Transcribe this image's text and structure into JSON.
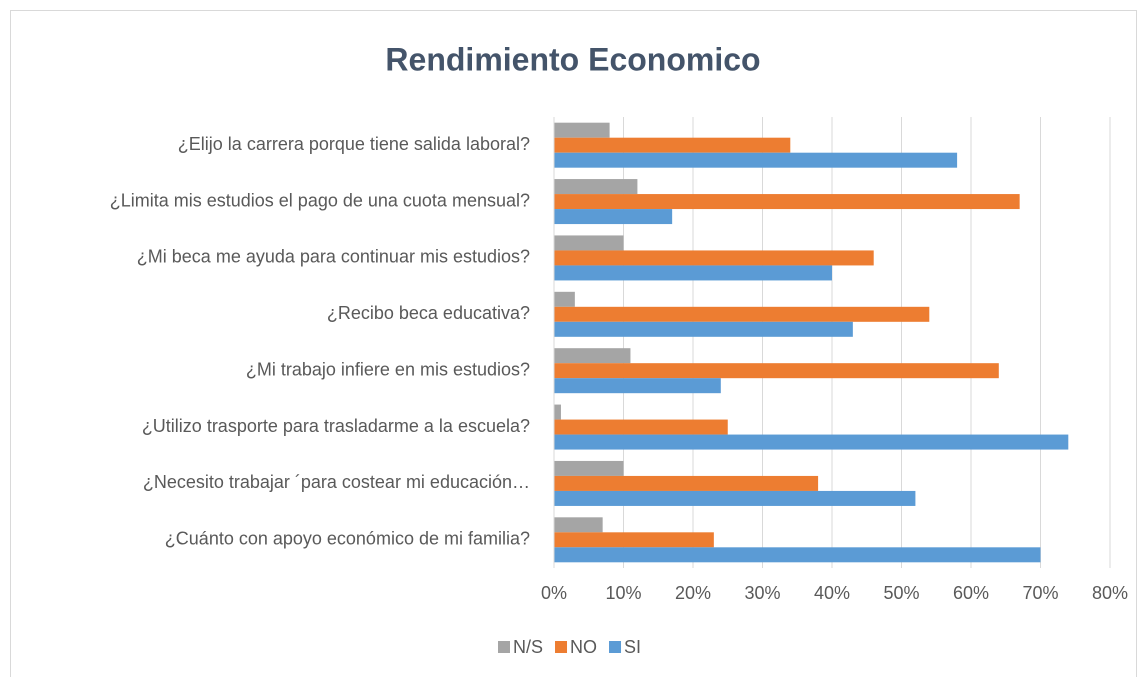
{
  "chart_data": {
    "type": "hbar",
    "title": "Rendimiento Economico",
    "categories": [
      "¿Elijo la carrera porque tiene salida laboral?",
      "¿Limita mis estudios el pago de una cuota mensual?",
      "¿Mi beca me ayuda para continuar mis estudios?",
      "¿Recibo beca educativa?",
      "¿Mi trabajo infiere en mis estudios?",
      "¿Utilizo trasporte para trasladarme a la escuela?",
      "¿Necesito trabajar ´para costear mi educación…",
      "¿Cuánto con apoyo económico de mi familia?"
    ],
    "series": [
      {
        "name": "N/S",
        "color": "#a5a5a5",
        "values": [
          8,
          12,
          10,
          3,
          11,
          1,
          10,
          7
        ]
      },
      {
        "name": "NO",
        "color": "#ed7d31",
        "values": [
          34,
          67,
          46,
          54,
          64,
          25,
          38,
          23
        ]
      },
      {
        "name": "SI",
        "color": "#5b9bd5",
        "values": [
          58,
          17,
          40,
          43,
          24,
          74,
          52,
          70
        ]
      }
    ],
    "xlim": [
      0,
      80
    ],
    "xticks": [
      {
        "value": 0,
        "label": "0%"
      },
      {
        "value": 10,
        "label": "10%"
      },
      {
        "value": 20,
        "label": "20%"
      },
      {
        "value": 30,
        "label": "30%"
      },
      {
        "value": 40,
        "label": "40%"
      },
      {
        "value": 50,
        "label": "50%"
      },
      {
        "value": 60,
        "label": "60%"
      },
      {
        "value": 70,
        "label": "70%"
      },
      {
        "value": 80,
        "label": "80%"
      }
    ],
    "grid": true,
    "legend": "bottom"
  }
}
